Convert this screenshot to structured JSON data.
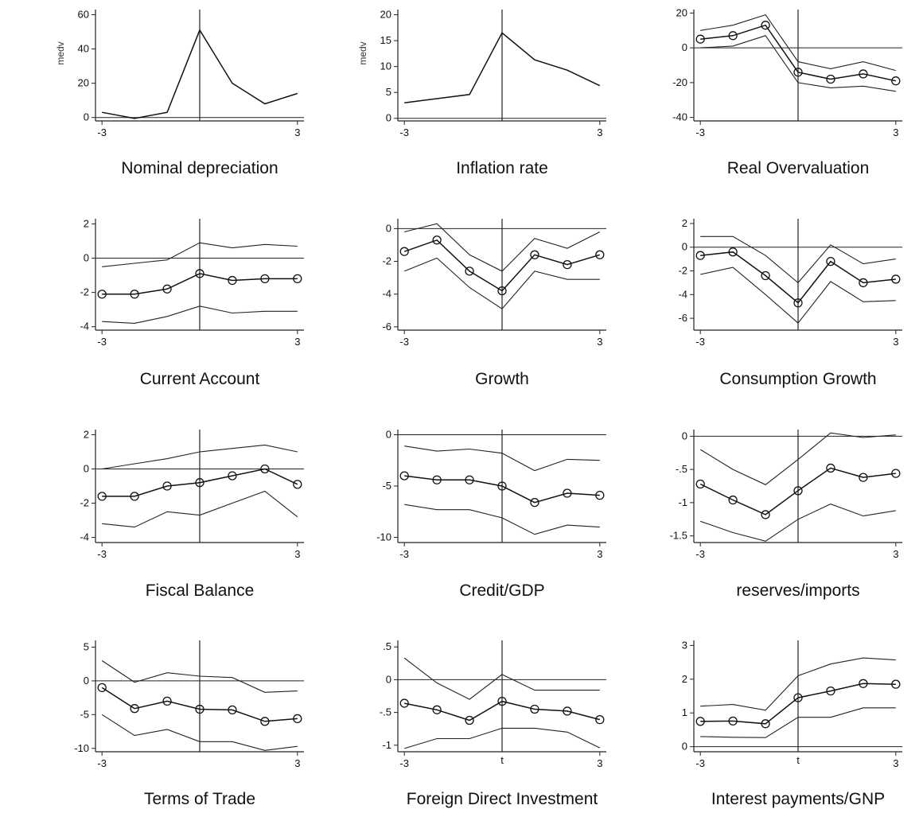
{
  "chart_data": [
    {
      "type": "line",
      "title": "Nominal depreciation",
      "ylabel": "medv",
      "xlabel": "",
      "x": [
        -3,
        -2,
        -1,
        0,
        1,
        2,
        3
      ],
      "xticks": [
        "-3",
        "3"
      ],
      "yticks": [
        "0",
        "20",
        "40",
        "60"
      ],
      "ylim": [
        -2,
        63
      ],
      "xlim": [
        -3.2,
        3.2
      ],
      "series": [
        {
          "values": [
            3,
            -0.5,
            3,
            51,
            20,
            8,
            14
          ]
        }
      ],
      "band": null,
      "zero_line": true,
      "vline": 0,
      "markers": false
    },
    {
      "type": "line",
      "title": "Inflation rate",
      "ylabel": "medv",
      "xlabel": "",
      "x": [
        -3,
        -2,
        -1,
        0,
        1,
        2,
        3
      ],
      "xticks": [
        "-3",
        "3"
      ],
      "yticks": [
        "0",
        "5",
        "10",
        "15",
        "20"
      ],
      "ylim": [
        -0.5,
        21
      ],
      "xlim": [
        -3.2,
        3.2
      ],
      "series": [
        {
          "values": [
            3,
            3.8,
            4.6,
            16.5,
            11.3,
            9.3,
            6.3
          ]
        }
      ],
      "band": null,
      "zero_line": true,
      "vline": 0,
      "markers": false
    },
    {
      "type": "line",
      "title": "Real Overvaluation",
      "ylabel": "",
      "xlabel": "",
      "x": [
        -3,
        -2,
        -1,
        0,
        1,
        2,
        3
      ],
      "xticks": [
        "-3",
        "3"
      ],
      "yticks": [
        "-40",
        "-20",
        "0",
        "20"
      ],
      "ylim": [
        -42,
        22
      ],
      "xlim": [
        -3.2,
        3.2
      ],
      "series": [
        {
          "values": [
            5,
            7,
            13,
            -14,
            -18,
            -15,
            -19
          ]
        }
      ],
      "band": {
        "upper": [
          10,
          13,
          19,
          -8,
          -12,
          -8,
          -13
        ],
        "lower": [
          0,
          1,
          7,
          -20,
          -23,
          -22,
          -25
        ]
      },
      "zero_line": true,
      "vline": 0,
      "markers": true
    },
    {
      "type": "line",
      "title": "Current Account",
      "ylabel": "",
      "xlabel": "",
      "x": [
        -3,
        -2,
        -1,
        0,
        1,
        2,
        3
      ],
      "xticks": [
        "-3",
        "3"
      ],
      "yticks": [
        "-4",
        "-2",
        "0",
        "2"
      ],
      "ylim": [
        -4.2,
        2.3
      ],
      "xlim": [
        -3.2,
        3.2
      ],
      "series": [
        {
          "values": [
            -2.1,
            -2.1,
            -1.8,
            -0.9,
            -1.3,
            -1.2,
            -1.2
          ]
        }
      ],
      "band": {
        "upper": [
          -0.5,
          -0.3,
          -0.1,
          0.9,
          0.6,
          0.8,
          0.7
        ],
        "lower": [
          -3.7,
          -3.8,
          -3.4,
          -2.8,
          -3.2,
          -3.1,
          -3.1
        ]
      },
      "zero_line": true,
      "vline": 0,
      "markers": true
    },
    {
      "type": "line",
      "title": "Growth",
      "ylabel": "",
      "xlabel": "",
      "x": [
        -3,
        -2,
        -1,
        0,
        1,
        2,
        3
      ],
      "xticks": [
        "-3",
        "3"
      ],
      "yticks": [
        "-6",
        "-4",
        "-2",
        "0"
      ],
      "ylim": [
        -6.2,
        0.6
      ],
      "xlim": [
        -3.2,
        3.2
      ],
      "series": [
        {
          "values": [
            -1.4,
            -0.7,
            -2.6,
            -3.8,
            -1.6,
            -2.2,
            -1.6
          ]
        }
      ],
      "band": {
        "upper": [
          -0.2,
          0.3,
          -1.6,
          -2.6,
          -0.6,
          -1.2,
          -0.2
        ],
        "lower": [
          -2.6,
          -1.8,
          -3.6,
          -4.9,
          -2.6,
          -3.1,
          -3.1
        ]
      },
      "zero_line": true,
      "vline": 0,
      "markers": true
    },
    {
      "type": "line",
      "title": "Consumption Growth",
      "ylabel": "",
      "xlabel": "",
      "x": [
        -3,
        -2,
        -1,
        0,
        1,
        2,
        3
      ],
      "xticks": [
        "-3",
        "3"
      ],
      "yticks": [
        "-6",
        "-4",
        "-2",
        "0",
        "2"
      ],
      "ylim": [
        -7,
        2.4
      ],
      "xlim": [
        -3.2,
        3.2
      ],
      "series": [
        {
          "values": [
            -0.7,
            -0.4,
            -2.4,
            -4.7,
            -1.2,
            -3,
            -2.7
          ]
        }
      ],
      "band": {
        "upper": [
          0.9,
          0.9,
          -0.7,
          -3,
          0.2,
          -1.4,
          -1
        ],
        "lower": [
          -2.3,
          -1.7,
          -4,
          -6.4,
          -2.9,
          -4.6,
          -4.5
        ]
      },
      "zero_line": true,
      "vline": 0,
      "markers": true
    },
    {
      "type": "line",
      "title": "Fiscal Balance",
      "ylabel": "",
      "xlabel": "",
      "x": [
        -3,
        -2,
        -1,
        0,
        1,
        2,
        3
      ],
      "xticks": [
        "-3",
        "3"
      ],
      "yticks": [
        "-4",
        "-2",
        "0",
        "2"
      ],
      "ylim": [
        -4.3,
        2.3
      ],
      "xlim": [
        -3.2,
        3.2
      ],
      "series": [
        {
          "values": [
            -1.6,
            -1.6,
            -1,
            -0.8,
            -0.4,
            0,
            -0.9
          ]
        }
      ],
      "band": {
        "upper": [
          0,
          0.3,
          0.6,
          1,
          1.2,
          1.4,
          1
        ],
        "lower": [
          -3.2,
          -3.4,
          -2.5,
          -2.7,
          -2,
          -1.3,
          -2.8
        ]
      },
      "zero_line": true,
      "vline": 0,
      "markers": true
    },
    {
      "type": "line",
      "title": "Credit/GDP",
      "ylabel": "",
      "xlabel": "",
      "x": [
        -3,
        -2,
        -1,
        0,
        1,
        2,
        3
      ],
      "xticks": [
        "-3",
        "3"
      ],
      "yticks": [
        "-10",
        "-5",
        "0"
      ],
      "ylim": [
        -10.5,
        0.5
      ],
      "xlim": [
        -3.2,
        3.2
      ],
      "series": [
        {
          "values": [
            -4,
            -4.4,
            -4.4,
            -5,
            -6.6,
            -5.7,
            -5.9
          ]
        }
      ],
      "band": {
        "upper": [
          -1.1,
          -1.6,
          -1.4,
          -1.8,
          -3.5,
          -2.4,
          -2.5
        ],
        "lower": [
          -6.8,
          -7.3,
          -7.3,
          -8.1,
          -9.7,
          -8.8,
          -9
        ]
      },
      "zero_line": true,
      "vline": 0,
      "markers": true
    },
    {
      "type": "line",
      "title": "reserves/imports",
      "ylabel": "",
      "xlabel": "",
      "x": [
        -3,
        -2,
        -1,
        0,
        1,
        2,
        3
      ],
      "xticks": [
        "-3",
        "3"
      ],
      "yticks": [
        "-1.5",
        "-1",
        "-.5",
        "0"
      ],
      "ylim": [
        -1.6,
        0.1
      ],
      "xlim": [
        -3.2,
        3.2
      ],
      "series": [
        {
          "values": [
            -0.72,
            -0.96,
            -1.18,
            -0.82,
            -0.48,
            -0.62,
            -0.56
          ]
        }
      ],
      "band": {
        "upper": [
          -0.2,
          -0.5,
          -0.73,
          -0.35,
          0.05,
          -0.02,
          0.02
        ],
        "lower": [
          -1.28,
          -1.45,
          -1.58,
          -1.25,
          -1.02,
          -1.2,
          -1.12
        ]
      },
      "zero_line": true,
      "vline": 0,
      "markers": true
    },
    {
      "type": "line",
      "title": "Terms of Trade",
      "ylabel": "",
      "xlabel": "",
      "x": [
        -3,
        -2,
        -1,
        0,
        1,
        2,
        3
      ],
      "xticks": [
        "-3",
        "3"
      ],
      "yticks": [
        "-10",
        "-5",
        "0",
        "5"
      ],
      "ylim": [
        -10.5,
        6
      ],
      "xlim": [
        -3.2,
        3.2
      ],
      "series": [
        {
          "values": [
            -1,
            -4.1,
            -3,
            -4.2,
            -4.3,
            -6,
            -5.6
          ]
        }
      ],
      "band": {
        "upper": [
          3,
          -0.2,
          1.2,
          0.7,
          0.5,
          -1.7,
          -1.5
        ],
        "lower": [
          -5,
          -8.1,
          -7.2,
          -9,
          -9,
          -10.3,
          -9.7
        ]
      },
      "zero_line": true,
      "vline": 0,
      "markers": true
    },
    {
      "type": "line",
      "title": "Foreign Direct Investment",
      "ylabel": "",
      "xlabel": "t",
      "x": [
        -3,
        -2,
        -1,
        0,
        1,
        2,
        3
      ],
      "xticks": [
        "-3",
        "3"
      ],
      "yticks": [
        "-1",
        "-.5",
        "0",
        ".5"
      ],
      "ylim": [
        -1.1,
        0.6
      ],
      "xlim": [
        -3.2,
        3.2
      ],
      "series": [
        {
          "values": [
            -0.36,
            -0.46,
            -0.62,
            -0.33,
            -0.45,
            -0.48,
            -0.61
          ]
        }
      ],
      "band": {
        "upper": [
          0.33,
          -0.05,
          -0.3,
          0.08,
          -0.16,
          -0.16,
          -0.16
        ],
        "lower": [
          -1.05,
          -0.9,
          -0.9,
          -0.74,
          -0.74,
          -0.8,
          -1.04
        ]
      },
      "zero_line": true,
      "vline": 0,
      "markers": true
    },
    {
      "type": "line",
      "title": "Interest payments/GNP",
      "ylabel": "",
      "xlabel": "t",
      "x": [
        -3,
        -2,
        -1,
        0,
        1,
        2,
        3
      ],
      "xticks": [
        "-3",
        "3"
      ],
      "yticks": [
        "0",
        "1",
        "2",
        "3"
      ],
      "ylim": [
        -0.15,
        3.15
      ],
      "xlim": [
        -3.2,
        3.2
      ],
      "series": [
        {
          "values": [
            0.75,
            0.76,
            0.68,
            1.45,
            1.65,
            1.87,
            1.85
          ]
        }
      ],
      "band": {
        "upper": [
          1.2,
          1.25,
          1.08,
          2.1,
          2.45,
          2.63,
          2.57
        ],
        "lower": [
          0.3,
          0.28,
          0.27,
          0.87,
          0.87,
          1.15,
          1.15
        ]
      },
      "zero_line": true,
      "vline": 0,
      "markers": true
    }
  ]
}
